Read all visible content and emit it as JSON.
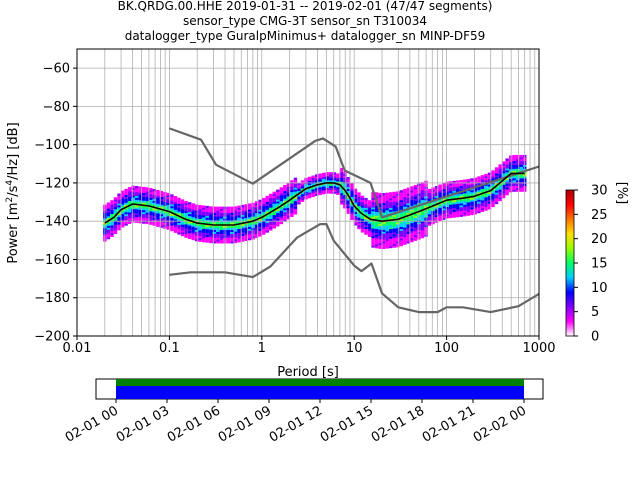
{
  "header": {
    "line1": "BK.QRDG.00.HHE   2019-01-31 -- 2019-02-01  (47/47 segments)",
    "line2": "sensor_type CMG-3T sensor_sn T310034",
    "line3": "datalogger_type GuralpMinimus+ datalogger_sn MINP-DF59"
  },
  "colorbar": {
    "label": "[%]",
    "ticks": [
      "0",
      "5",
      "10",
      "15",
      "20",
      "25",
      "30"
    ],
    "range": [
      0,
      30
    ],
    "colormap": [
      "#ffffff",
      "#ff00ff",
      "#7f00ff",
      "#0000ff",
      "#00ccff",
      "#00ff66",
      "#99ff00",
      "#ffdd00",
      "#ff7700",
      "#ff0000",
      "#aa0000"
    ]
  },
  "timeline": {
    "ticks": [
      "02-01 00",
      "02-01 03",
      "02-01 06",
      "02-01 09",
      "02-01 12",
      "02-01 15",
      "02-01 18",
      "02-01 21",
      "02-02 00"
    ],
    "bar_colors": {
      "green": "#008000",
      "blue": "#0000ff"
    }
  },
  "chart_data": {
    "type": "line",
    "title": "BK.QRDG.00.HHE   2019-01-31 -- 2019-02-01  (47/47 segments)",
    "xlabel": "Period [s]",
    "ylabel": "Power [m²/s⁴/Hz] [dB]",
    "xscale": "log",
    "xlim": [
      0.01,
      1000
    ],
    "ylim": [
      -200,
      -50
    ],
    "xticks": [
      "0.01",
      "0.1",
      "1",
      "10",
      "100",
      "1000"
    ],
    "yticks": [
      "−200",
      "−180",
      "−160",
      "−140",
      "−120",
      "−100",
      "−80",
      "−60"
    ],
    "grid": true,
    "series": [
      {
        "color": "#666666",
        "x": [
          0.1,
          0.22,
          0.32,
          0.8,
          3.8,
          4.6,
          6.3,
          7.9,
          15,
          20,
          1000
        ],
        "y": [
          -91.5,
          -97.4,
          -110.5,
          -120.4,
          -98.0,
          -96.7,
          -101.0,
          -113.5,
          -120.0,
          -138.0,
          -111.4
        ]
      },
      {
        "color": "#666666",
        "x": [
          0.1,
          0.17,
          0.4,
          0.8,
          1.24,
          2.4,
          4.3,
          5.0,
          6.0,
          10,
          12,
          15.4,
          20,
          30,
          50,
          80,
          100,
          150,
          300,
          600,
          1000
        ],
        "y": [
          -168.0,
          -166.7,
          -166.7,
          -169.2,
          -163.7,
          -148.6,
          -141.5,
          -141.5,
          -150.2,
          -163.2,
          -166.1,
          -162.1,
          -177.7,
          -185.0,
          -187.5,
          -187.5,
          -185.0,
          -185.0,
          -187.5,
          -184.4,
          -178.0
        ]
      },
      {
        "color": "#000000",
        "x": [
          0.02,
          0.025,
          0.03,
          0.04,
          0.06,
          0.1,
          0.15,
          0.2,
          0.3,
          0.5,
          0.8,
          1,
          1.5,
          2,
          3,
          4,
          5,
          6,
          7,
          8,
          9,
          10,
          12,
          15,
          20,
          30,
          50,
          80,
          100,
          150,
          200,
          300,
          500,
          700
        ],
        "y": [
          -141,
          -138,
          -134,
          -131,
          -132,
          -135,
          -139,
          -141,
          -142,
          -142,
          -140,
          -138,
          -133,
          -129,
          -123,
          -121,
          -120,
          -120,
          -121,
          -124,
          -128,
          -132,
          -136,
          -139,
          -140,
          -139,
          -135,
          -131,
          -129,
          -128,
          -127,
          -124,
          -115,
          -115
        ]
      }
    ]
  }
}
